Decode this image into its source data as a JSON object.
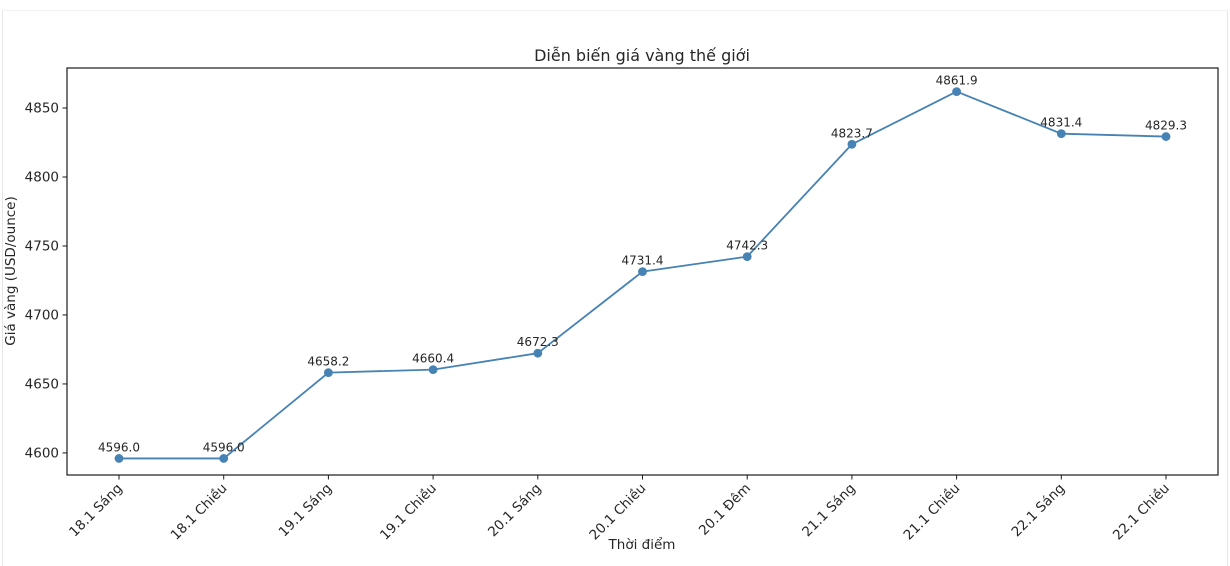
{
  "page": {
    "background": "#ffffff",
    "frame_edge_color": "#e6e6e6"
  },
  "chart_data": {
    "type": "line",
    "title": "Diễn biến giá vàng thế giới",
    "xlabel": "Thời điểm",
    "ylabel": "Giá vàng (USD/ounce)",
    "categories": [
      "18.1 Sáng",
      "18.1 Chiều",
      "19.1 Sáng",
      "19.1 Chiều",
      "20.1 Sáng",
      "20.1 Chiều",
      "20.1 Đêm",
      "21.1 Sáng",
      "21.1 Chiều",
      "22.1 Sáng",
      "22.1 Chiều"
    ],
    "values": [
      4596.0,
      4596.0,
      4658.2,
      4660.4,
      4672.3,
      4731.4,
      4742.3,
      4823.7,
      4861.9,
      4831.4,
      4829.3
    ],
    "point_labels": [
      "4596.0",
      "4596.0",
      "4658.2",
      "4660.4",
      "4672.3",
      "4731.4",
      "4742.3",
      "4823.7",
      "4861.9",
      "4831.4",
      "4829.3"
    ],
    "y_ticks": [
      4600,
      4650,
      4700,
      4750,
      4800,
      4850
    ],
    "ylim": [
      4584,
      4879
    ],
    "grid": false,
    "legend": null,
    "line_color": "#4682b4",
    "marker": "circle",
    "text_color": "#262626",
    "spine_color": "#1a1a1a"
  }
}
